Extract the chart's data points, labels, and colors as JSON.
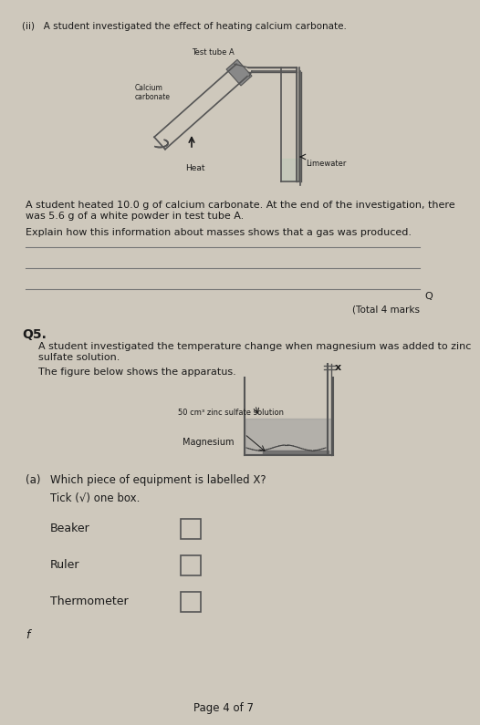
{
  "bg_color": "#cec8bc",
  "text_color": "#1a1a1a",
  "page_title": "(ii)   A student investigated the effect of heating calcium carbonate.",
  "diagram1_labels": {
    "test_tube_a": "Test tube A",
    "calcium_carbonate": "Calcium\ncarbonate",
    "heat": "Heat",
    "limewater": "Limewater"
  },
  "para1": "A student heated 10.0 g of calcium carbonate. At the end of the investigation, there\nwas 5.6 g of a white powder in test tube A.",
  "question1": "Explain how this information about masses shows that a gas was produced.",
  "answer_lines": 3,
  "total_marks": "(Total 4 marks",
  "q5_label": "Q5.",
  "q5_intro": "A student investigated the temperature change when magnesium was added to zinc\nsulfate solution.",
  "figure_caption": "The figure below shows the apparatus.",
  "diagram2_labels": {
    "x_label": "x",
    "solution": "50 cm³ zinc sulfate solution",
    "magnesium": "Magnesium"
  },
  "qa_label": "(a)",
  "qa_text": "Which piece of equipment is labelled X?",
  "tick_instruction": "Tick (√) one box.",
  "options": [
    "Beaker",
    "Ruler",
    "Thermometer"
  ],
  "page_footer": "Page 4 of 7"
}
